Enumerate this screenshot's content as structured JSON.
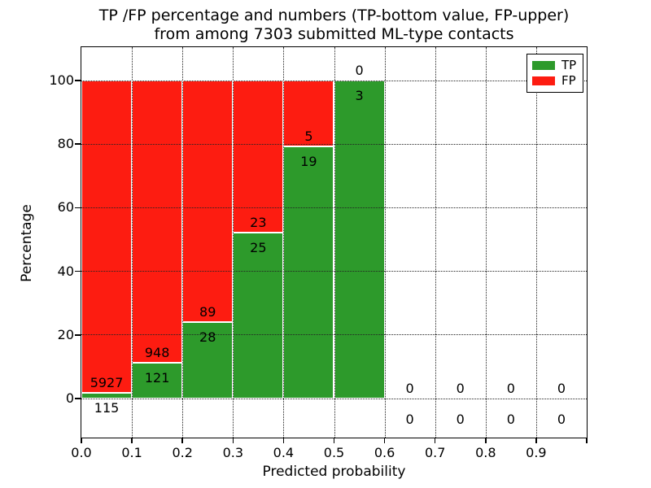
{
  "title": {
    "line1": "TP /FP percentage and numbers (TP-bottom value, FP-upper)",
    "line2": "from among 7303 submitted ML-type contacts"
  },
  "colors": {
    "tp_green": "#2d9a2b",
    "fp_red": "#fd1c11",
    "grid": "#222222",
    "bar_edge": "#ffffff"
  },
  "legend": {
    "position": "upper right",
    "entries": [
      {
        "label": "TP",
        "color": "#2d9a2b"
      },
      {
        "label": "FP",
        "color": "#fd1c11"
      }
    ]
  },
  "chart_data": {
    "type": "bar",
    "stacked": true,
    "normalized_to_percent": true,
    "title": "TP /FP percentage and numbers (TP-bottom value, FP-upper) from among 7303 submitted ML-type contacts",
    "xlabel": "Predicted probability",
    "ylabel": "Percentage",
    "total_contacts": 7303,
    "bin_width": 0.1,
    "bin_starts": [
      0.0,
      0.1,
      0.2,
      0.3,
      0.4,
      0.5,
      0.6,
      0.7,
      0.8,
      0.9
    ],
    "x_tick_labels": [
      "0.0",
      "0.1",
      "0.2",
      "0.3",
      "0.4",
      "0.5",
      "0.6",
      "0.7",
      "0.8",
      "0.9"
    ],
    "y_ticks": [
      0,
      20,
      40,
      60,
      80,
      100
    ],
    "ylim": [
      -12,
      110
    ],
    "grid": "dotted",
    "legend_position": "upper right",
    "series": [
      {
        "name": "TP",
        "color": "#2d9a2b",
        "values": [
          115,
          121,
          28,
          25,
          19,
          3,
          0,
          0,
          0,
          0
        ]
      },
      {
        "name": "FP",
        "color": "#fd1c11",
        "values": [
          5927,
          948,
          89,
          23,
          5,
          0,
          0,
          0,
          0,
          0
        ]
      }
    ],
    "tp_percent_per_bin": [
      1.9,
      11.3,
      23.9,
      52.1,
      79.2,
      100.0,
      0,
      0,
      0,
      0
    ]
  }
}
